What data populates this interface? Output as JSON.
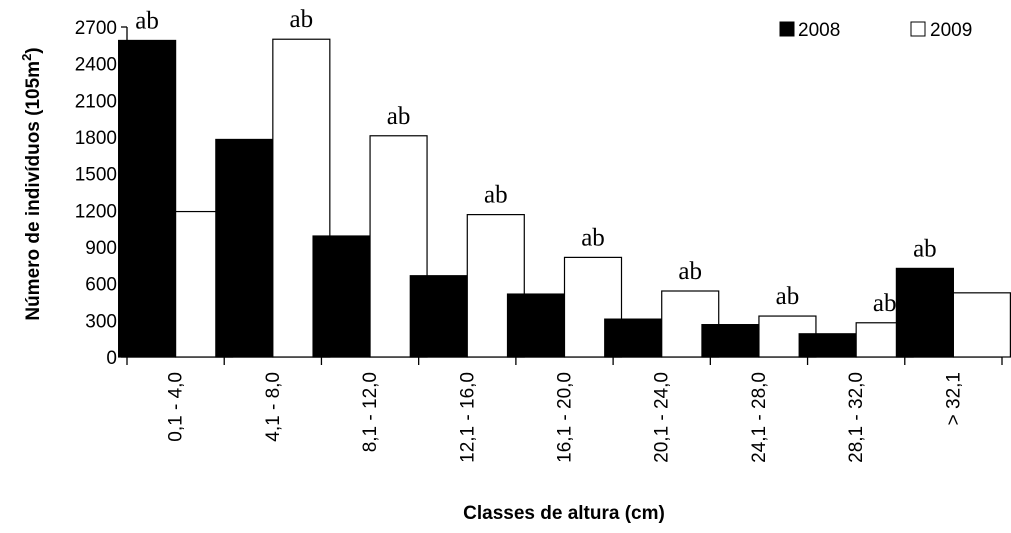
{
  "chart_data": {
    "type": "bar",
    "title": "",
    "xlabel": "Classes de altura (cm)",
    "ylabel_main": "Número de indivíduos (105m",
    "ylabel_sup": "2",
    "ylabel_end": ")",
    "ylim": [
      0,
      2700
    ],
    "yticks": [
      0,
      300,
      600,
      900,
      1200,
      1500,
      1800,
      2100,
      2400,
      2700
    ],
    "grid": false,
    "legend_position": "top-right",
    "categories": [
      "0,1 - 4,0",
      "4,1 - 8,0",
      "8,1 - 12,0",
      "12,1 - 16,0",
      "16,1 - 20,0",
      "20,1 - 24,0",
      "24,1 - 28,0",
      "28,1 - 32,0",
      "> 32,1"
    ],
    "series": [
      {
        "name": "2008",
        "color": "#000000",
        "values": [
          2590,
          1780,
          990,
          665,
          515,
          310,
          265,
          190,
          725
        ]
      },
      {
        "name": "2009",
        "color": "#ffffff",
        "values": [
          1190,
          2600,
          1810,
          1165,
          815,
          540,
          335,
          280,
          525
        ]
      }
    ],
    "annotations": [
      "ab",
      "ab",
      "ab",
      "ab",
      "ab",
      "ab",
      "ab",
      "ab",
      "ab"
    ]
  }
}
